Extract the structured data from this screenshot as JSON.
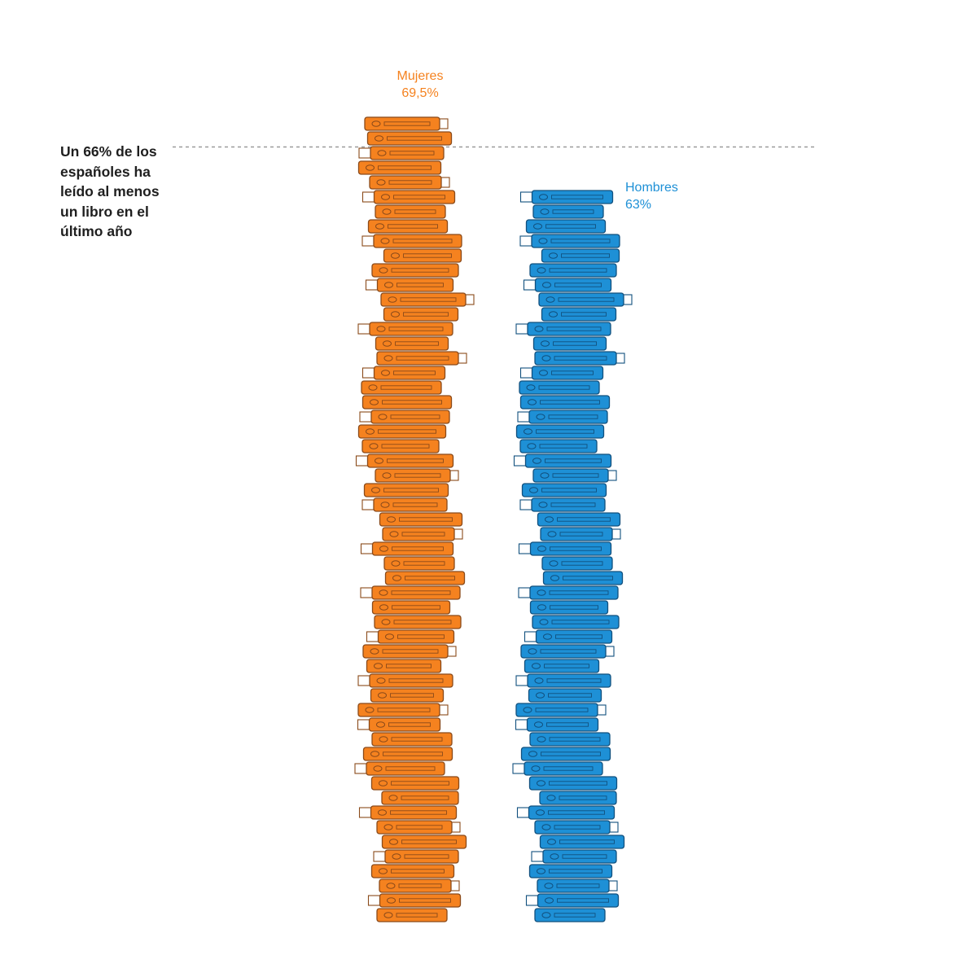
{
  "chart_data": {
    "type": "bar",
    "title": "",
    "xlabel": "",
    "ylabel": "",
    "ylim": [
      0,
      69.5
    ],
    "grid": false,
    "categories": [
      "Mujeres",
      "Hombres"
    ],
    "series": [
      {
        "name": "Mujeres",
        "value": 69.5,
        "value_label": "69,5%",
        "color": "#F5821F",
        "outline": "#8A4A1A"
      },
      {
        "name": "Hombres",
        "value": 63,
        "value_label": "63%",
        "color": "#1E90D6",
        "outline": "#11507E"
      }
    ],
    "reference": {
      "value": 66,
      "lines": [
        "Un 66% de los",
        "españoles ha",
        "leído al menos",
        "un libro en el",
        "último año"
      ]
    }
  }
}
